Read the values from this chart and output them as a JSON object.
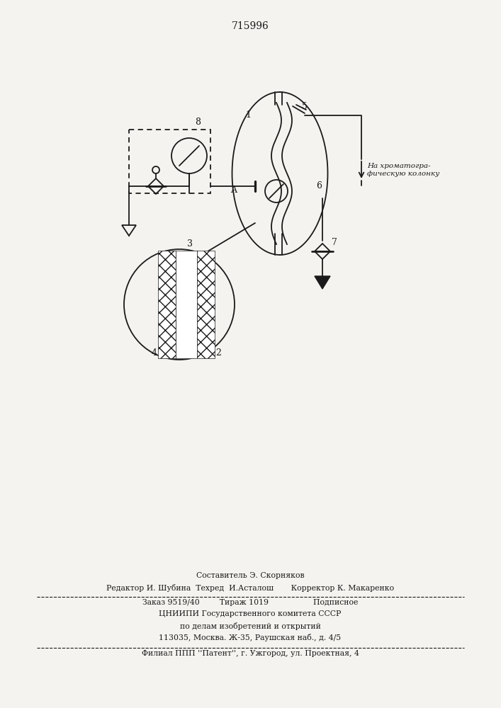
{
  "title": "715996",
  "bg_color": "#f5f3ef",
  "line_color": "#1a1a1a",
  "fig_width": 7.07,
  "fig_height": 10.0,
  "footer_lines": [
    "Составитель Э. Скорняков",
    "Редактор И. Шубина  Техред  И.Асталош       Корректор К. Макаренко",
    "Заказ 9519/40        Тираж 1019                  Подписное",
    "ЦНИИПИ Государственного комитета СССР",
    "по делам изобретений и открытий",
    "113035, Москва. Ж-35, Раушская наб., д. 4/5",
    "Филиал ППП ''Патент'', г. Ужгород, ул. Проектная, 4"
  ],
  "annotation_text": "На хроматогра-\nфическую колонку"
}
